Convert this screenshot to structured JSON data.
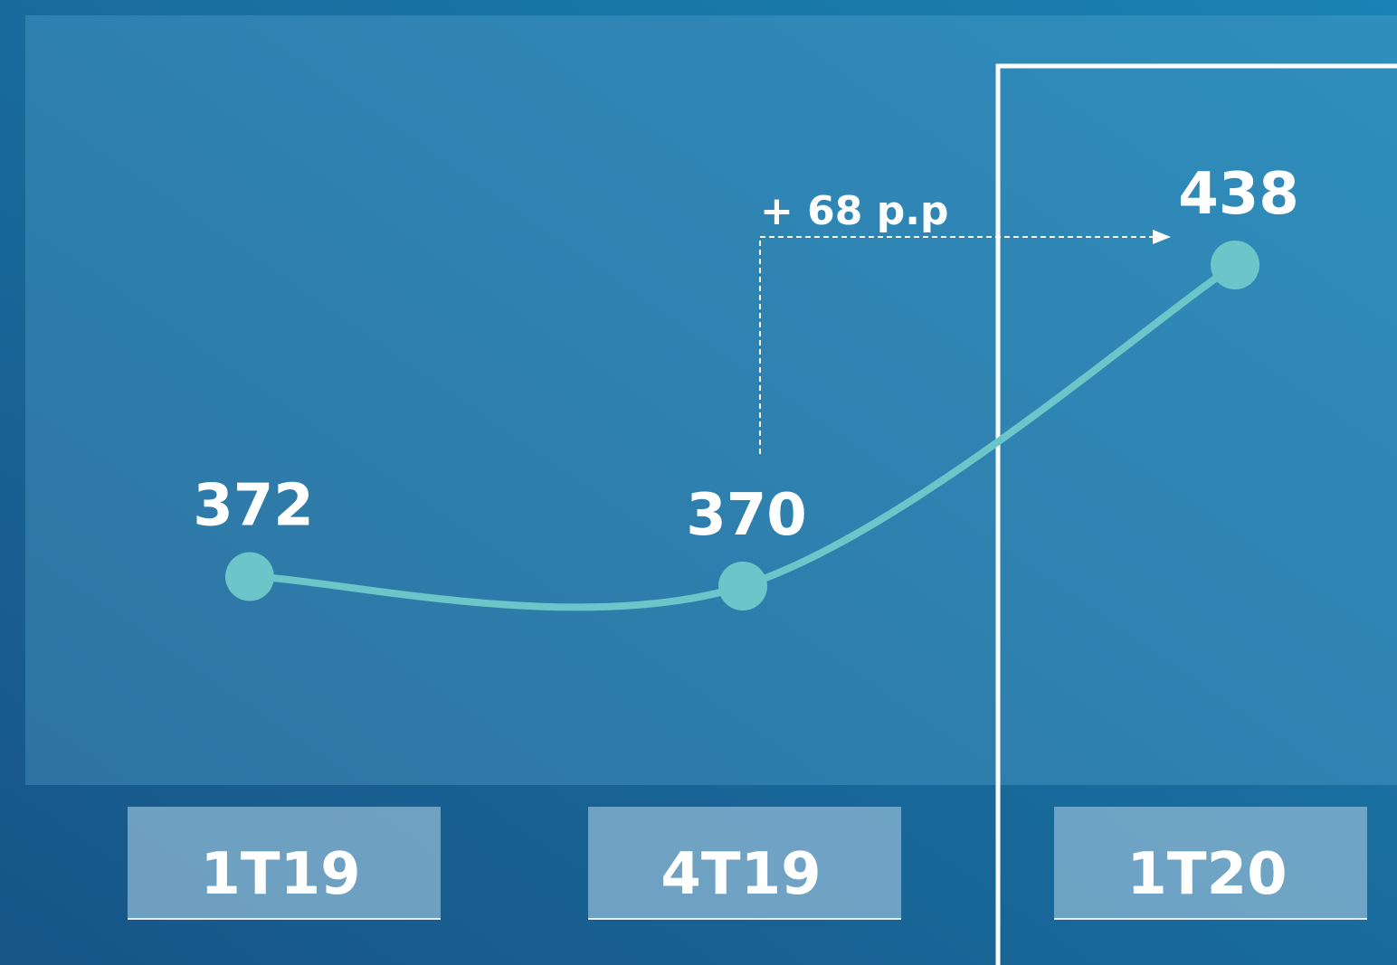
{
  "chart_data": {
    "type": "line",
    "categories": [
      "1T19",
      "4T19",
      "1T20"
    ],
    "values": [
      372,
      370,
      438
    ],
    "color": "#6cc5c9",
    "annotation": "+ 68 p.p"
  }
}
